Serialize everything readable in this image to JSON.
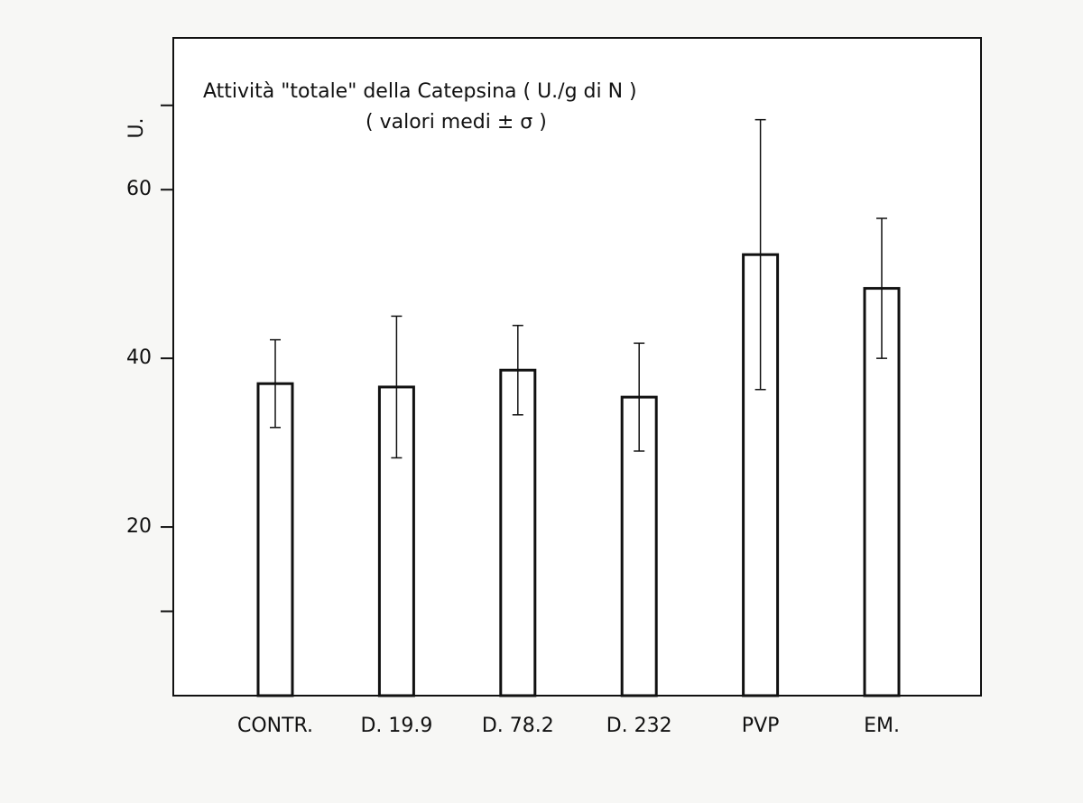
{
  "chart_data": {
    "type": "bar",
    "title": "Attività \"totale\" della Catepsina ( U./g di N )",
    "subtitle": "( valori medi ± σ )",
    "y_label": "U.",
    "categories": [
      "CONTR.",
      "D. 19.9",
      "D. 78.2",
      "D. 232",
      "PVP",
      "EM."
    ],
    "values": [
      37.0,
      36.6,
      38.6,
      35.4,
      52.3,
      48.3
    ],
    "errors": [
      5.2,
      8.4,
      5.3,
      6.4,
      16.0,
      8.3
    ],
    "color": "#ffffff",
    "edge_color": "#111111",
    "ylim": [
      0,
      78
    ],
    "yticks": [
      20,
      40,
      60
    ],
    "minor_yticks": [
      10,
      70
    ],
    "grid": false
  }
}
